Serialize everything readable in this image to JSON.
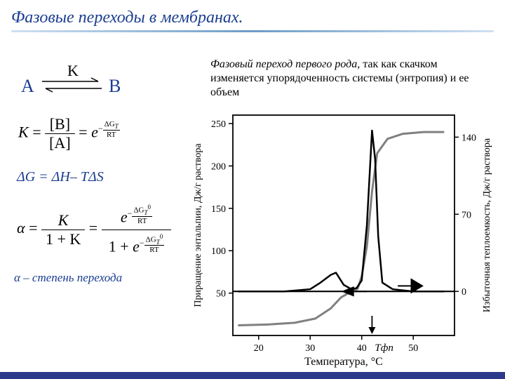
{
  "title": "Фазовые переходы в мембранах.",
  "reaction": {
    "A": "A",
    "B": "B",
    "K": "K"
  },
  "eq1": {
    "K": "K",
    "numB": "[B]",
    "denA": "[A]",
    "e": "e",
    "exp_num": "ΔG",
    "exp_T": "T",
    "exp_den": "RT"
  },
  "gibbs": "ΔG = ΔH– TΔS",
  "eq2": {
    "alpha": "α",
    "K": "K",
    "oneK": "1 + K",
    "e": "e",
    "exp_num": "ΔG",
    "exp_T": "T",
    "zero": "0",
    "exp_den": "RT",
    "one": "1"
  },
  "alpha_note": "α – степень перехода",
  "desc_em": "Фазовый переход первого рода",
  "desc_rest": ", так как скачком изменяется упорядоченность системы (энтропия) и ее объем",
  "chart": {
    "type": "line",
    "x": {
      "label": "Температура, °C",
      "min": 15,
      "max": 58,
      "ticks": [
        20,
        30,
        40,
        50
      ],
      "label_fontsize": 16
    },
    "y_left": {
      "label": "Приращение энтальпии, Дж/г раствора",
      "min": 0,
      "max": 260,
      "ticks": [
        50,
        100,
        150,
        200,
        250
      ],
      "label_fontsize": 14
    },
    "y_right": {
      "label": "Избыточная теплоемкость, Дж/г раствора",
      "min": -40,
      "max": 160,
      "ticks": [
        0,
        70,
        140
      ],
      "label_fontsize": 14
    },
    "tfp_label": "Tфп",
    "tfp_x": 42,
    "series": [
      {
        "name": "enthalpy",
        "axis": "left",
        "color": "#808080",
        "width": 3,
        "points": [
          [
            16,
            12
          ],
          [
            22,
            13
          ],
          [
            27,
            15
          ],
          [
            31,
            20
          ],
          [
            34,
            32
          ],
          [
            36,
            45
          ],
          [
            38,
            52
          ],
          [
            39.2,
            55
          ],
          [
            40,
            70
          ],
          [
            41,
            105
          ],
          [
            42,
            170
          ],
          [
            43,
            215
          ],
          [
            45,
            232
          ],
          [
            48,
            238
          ],
          [
            52,
            240
          ],
          [
            56,
            240
          ]
        ]
      },
      {
        "name": "heat_capacity",
        "axis": "right",
        "color": "#000000",
        "width": 2.5,
        "points": [
          [
            16,
            0
          ],
          [
            25,
            0
          ],
          [
            30,
            2
          ],
          [
            32,
            8
          ],
          [
            34,
            15
          ],
          [
            35,
            17
          ],
          [
            36.5,
            6
          ],
          [
            38,
            2
          ],
          [
            39,
            3
          ],
          [
            40,
            10
          ],
          [
            41,
            60
          ],
          [
            42,
            146
          ],
          [
            42.6,
            120
          ],
          [
            43.2,
            50
          ],
          [
            44,
            8
          ],
          [
            46,
            2
          ],
          [
            50,
            0
          ],
          [
            56,
            0
          ]
        ]
      }
    ],
    "background_color": "#ffffff",
    "axis_color": "#000000",
    "tick_fontsize": 14
  }
}
